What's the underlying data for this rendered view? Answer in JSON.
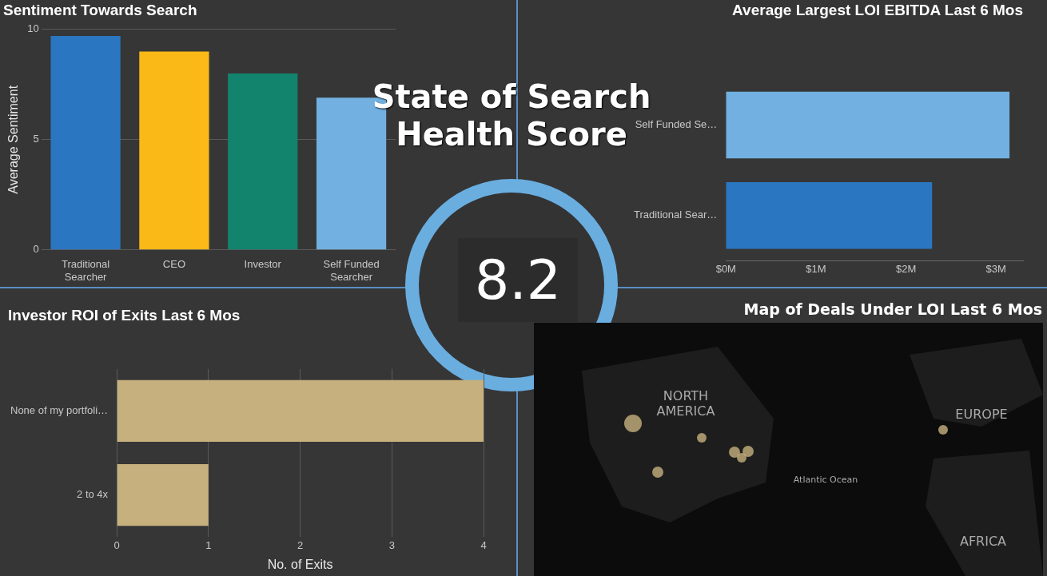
{
  "chart_data": [
    {
      "type": "bar",
      "title": "Sentiment Towards Search",
      "ylabel": "Average Sentiment",
      "categories": [
        "Traditional Searcher",
        "CEO",
        "Investor",
        "Self Funded Searcher"
      ],
      "values": [
        9.7,
        9.0,
        8.0,
        6.9
      ],
      "colors": [
        "#2b76c1",
        "#fbb917",
        "#12846e",
        "#71b0e0"
      ],
      "ylim": [
        0,
        10
      ],
      "yticks": [
        0,
        5,
        10
      ],
      "grid": "y",
      "legend": false
    },
    {
      "type": "other",
      "title": "State of Search Health Score",
      "annotations": [
        "8.2"
      ]
    },
    {
      "type": "bar",
      "orientation": "horizontal",
      "title": "Average Largest LOI EBITDA Last 6 Mos",
      "categories": [
        "Self Funded Se…",
        "Traditional Sear…"
      ],
      "values": [
        3.15,
        2.29
      ],
      "colors": [
        "#71b0e0",
        "#2b76c1"
      ],
      "xlim": [
        0,
        3.3
      ],
      "xticks": [
        {
          "value": 0,
          "label": "$0M"
        },
        {
          "value": 1,
          "label": "$1M"
        },
        {
          "value": 2,
          "label": "$2M"
        },
        {
          "value": 3,
          "label": "$3M"
        }
      ],
      "grid": false,
      "legend": false
    },
    {
      "type": "bar",
      "orientation": "horizontal",
      "title": "Investor ROI of Exits Last 6 Mos",
      "xlabel": "No. of Exits",
      "categories": [
        "None of my portfoli…",
        "2 to 4x"
      ],
      "values": [
        4,
        1
      ],
      "colors": [
        "#c5b07e",
        "#c5b07e"
      ],
      "xlim": [
        0,
        4
      ],
      "xticks": [
        0,
        1,
        2,
        3,
        4
      ],
      "grid": "x",
      "legend": false
    },
    {
      "type": "other",
      "title": "Map of Deals Under LOI Last 6 Mos",
      "annotations": [
        "NORTH AMERICA",
        "EUROPE",
        "Atlantic Ocean",
        "AFRICA"
      ]
    }
  ]
}
